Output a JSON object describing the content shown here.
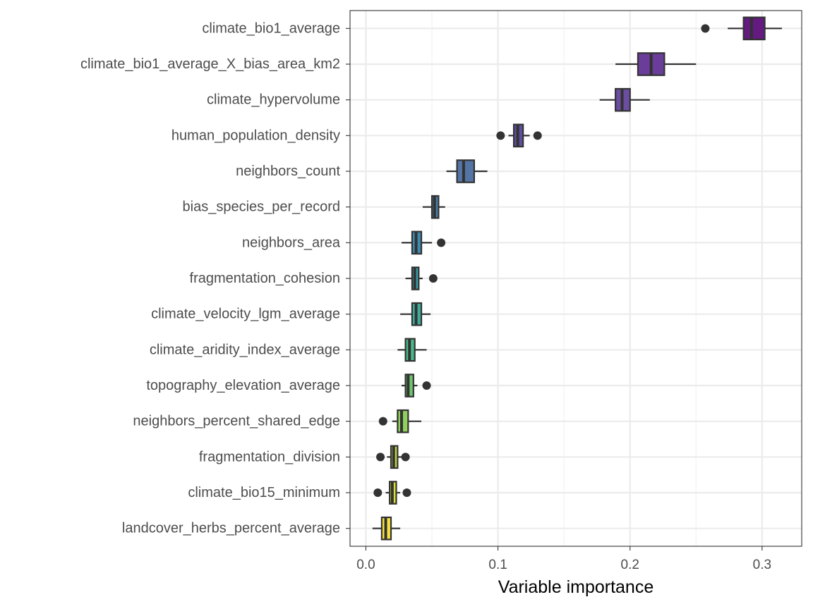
{
  "chart_data": {
    "type": "boxplot",
    "orientation": "horizontal",
    "xlabel": "Variable importance",
    "ylabel": "",
    "xlim": [
      -0.012,
      0.33
    ],
    "xticks": [
      0.0,
      0.1,
      0.2,
      0.3
    ],
    "xtick_labels": [
      "0.0",
      "0.1",
      "0.2",
      "0.3"
    ],
    "grid": true,
    "theme": "bw",
    "series": [
      {
        "name": "climate_bio1_average",
        "whisker_low": 0.274,
        "q1": 0.286,
        "median": 0.292,
        "q3": 0.302,
        "whisker_high": 0.315,
        "outliers": [
          0.257
        ],
        "color": "#641a80"
      },
      {
        "name": "climate_bio1_average_X_bias_area_km2",
        "whisker_low": 0.189,
        "q1": 0.206,
        "median": 0.216,
        "q3": 0.226,
        "whisker_high": 0.25,
        "outliers": [],
        "color": "#6a3d9a"
      },
      {
        "name": "climate_hypervolume",
        "whisker_low": 0.177,
        "q1": 0.189,
        "median": 0.194,
        "q3": 0.2,
        "whisker_high": 0.215,
        "outliers": [],
        "color": "#6c4ea0"
      },
      {
        "name": "human_population_density",
        "whisker_low": 0.108,
        "q1": 0.112,
        "median": 0.115,
        "q3": 0.119,
        "whisker_high": 0.124,
        "outliers": [
          0.102,
          0.13
        ],
        "color": "#5e4e9b"
      },
      {
        "name": "neighbors_count",
        "whisker_low": 0.061,
        "q1": 0.069,
        "median": 0.074,
        "q3": 0.082,
        "whisker_high": 0.092,
        "outliers": [],
        "color": "#5574a6"
      },
      {
        "name": "bias_species_per_record",
        "whisker_low": 0.043,
        "q1": 0.05,
        "median": 0.052,
        "q3": 0.055,
        "whisker_high": 0.06,
        "outliers": [],
        "color": "#4a7fae"
      },
      {
        "name": "neighbors_area",
        "whisker_low": 0.027,
        "q1": 0.035,
        "median": 0.038,
        "q3": 0.042,
        "whisker_high": 0.05,
        "outliers": [
          0.057
        ],
        "color": "#3e8ab0"
      },
      {
        "name": "fragmentation_cohesion",
        "whisker_low": 0.03,
        "q1": 0.035,
        "median": 0.037,
        "q3": 0.04,
        "whisker_high": 0.043,
        "outliers": [
          0.051
        ],
        "color": "#35a0a8"
      },
      {
        "name": "climate_velocity_lgm_average",
        "whisker_low": 0.026,
        "q1": 0.035,
        "median": 0.038,
        "q3": 0.042,
        "whisker_high": 0.049,
        "outliers": [],
        "color": "#3dae9b"
      },
      {
        "name": "climate_aridity_index_average",
        "whisker_low": 0.024,
        "q1": 0.03,
        "median": 0.033,
        "q3": 0.037,
        "whisker_high": 0.046,
        "outliers": [],
        "color": "#48b987"
      },
      {
        "name": "topography_elevation_average",
        "whisker_low": 0.027,
        "q1": 0.03,
        "median": 0.032,
        "q3": 0.036,
        "whisker_high": 0.039,
        "outliers": [
          0.046
        ],
        "color": "#6cc66d"
      },
      {
        "name": "neighbors_percent_shared_edge",
        "whisker_low": 0.02,
        "q1": 0.024,
        "median": 0.027,
        "q3": 0.032,
        "whisker_high": 0.042,
        "outliers": [
          0.013
        ],
        "color": "#8fd05a"
      },
      {
        "name": "fragmentation_division",
        "whisker_low": 0.016,
        "q1": 0.019,
        "median": 0.021,
        "q3": 0.024,
        "whisker_high": 0.027,
        "outliers": [
          0.011,
          0.03
        ],
        "color": "#b9d63e"
      },
      {
        "name": "climate_bio15_minimum",
        "whisker_low": 0.015,
        "q1": 0.018,
        "median": 0.02,
        "q3": 0.023,
        "whisker_high": 0.026,
        "outliers": [
          0.009,
          0.031
        ],
        "color": "#d8df31"
      },
      {
        "name": "landcover_herbs_percent_average",
        "whisker_low": 0.005,
        "q1": 0.012,
        "median": 0.015,
        "q3": 0.019,
        "whisker_high": 0.026,
        "outliers": [],
        "color": "#f6e23b"
      }
    ]
  }
}
